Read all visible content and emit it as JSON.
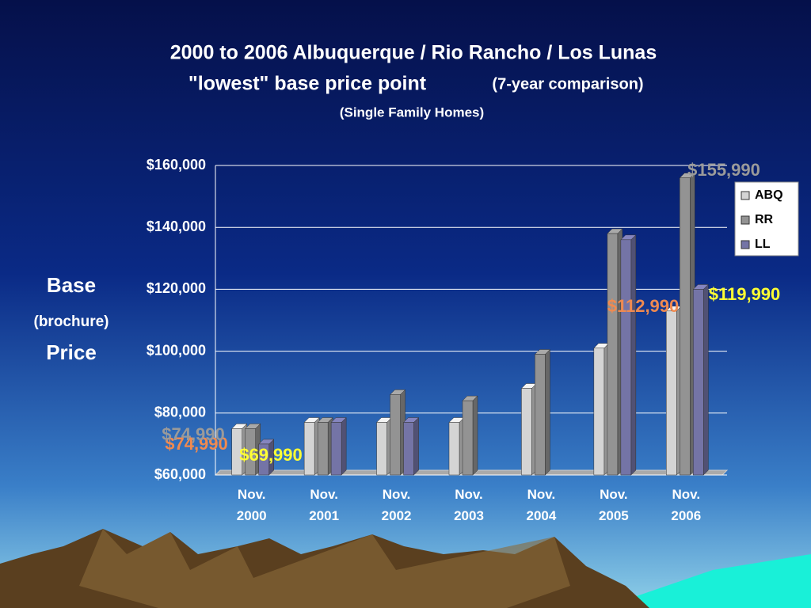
{
  "chart_data": {
    "type": "bar3d",
    "title": "2000 to 2006 Albuquerque / Rio Rancho / Los Lunas",
    "subtitle": "\"lowest\" base price point",
    "subtitle_note": "(7-year comparison)",
    "subtitle2": "(Single Family Homes)",
    "ylabel": [
      "Base",
      "(brochure)",
      "Price"
    ],
    "categories": [
      "Nov. 2000",
      "Nov. 2001",
      "Nov. 2002",
      "Nov. 2003",
      "Nov. 2004",
      "Nov. 2005",
      "Nov. 2006"
    ],
    "series": [
      {
        "name": "ABQ",
        "color": "#d4d4d4",
        "label_color": "#f08a50",
        "values": [
          74990,
          77000,
          77000,
          77000,
          88000,
          101000,
          112990
        ],
        "value_labels": [
          "$74,990",
          null,
          null,
          null,
          null,
          null,
          "$112,990"
        ]
      },
      {
        "name": "RR",
        "color": "#939393",
        "label_color": "#9a9a9a",
        "values": [
          74990,
          77000,
          86000,
          84000,
          99000,
          138000,
          155990
        ],
        "value_labels": [
          "$74,990",
          null,
          null,
          null,
          null,
          null,
          "$155,990"
        ]
      },
      {
        "name": "LL",
        "color": "#7474a6",
        "label_color": "#ffff33",
        "values": [
          69990,
          77000,
          77000,
          null,
          null,
          136000,
          119990
        ],
        "value_labels": [
          "$69,990",
          null,
          null,
          null,
          null,
          null,
          "$119,990"
        ]
      }
    ],
    "ylim": [
      60000,
      160000
    ],
    "yticks": [
      {
        "value": 60000,
        "label": "$60,000"
      },
      {
        "value": 80000,
        "label": "$80,000"
      },
      {
        "value": 100000,
        "label": "$100,000"
      },
      {
        "value": 120000,
        "label": "$120,000"
      },
      {
        "value": 140000,
        "label": "$140,000"
      },
      {
        "value": 160000,
        "label": "$160,000"
      }
    ],
    "grid": true,
    "legend": "right"
  }
}
